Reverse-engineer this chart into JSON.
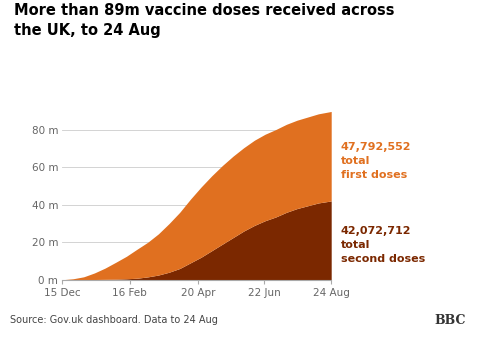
{
  "title": "More than 89m vaccine doses received across\nthe UK, to 24 Aug",
  "source_text": "Source: Gov.uk dashboard. Data to 24 Aug",
  "bbc_text": "BBC",
  "first_dose_label": "47,792,552\ntotal\nfirst doses",
  "second_dose_label": "42,072,712\ntotal\nsecond doses",
  "first_dose_color": "#E07020",
  "second_dose_color": "#7B2800",
  "title_color": "#000000",
  "label_first_color": "#E07020",
  "label_second_color": "#7B2800",
  "background_color": "#FFFFFF",
  "ytick_labels": [
    "0 m",
    "20 m",
    "40 m",
    "60 m",
    "80 m"
  ],
  "ytick_values": [
    0,
    20000000,
    40000000,
    60000000,
    80000000
  ],
  "xtick_labels": [
    "15 Dec",
    "16 Feb",
    "20 Apr",
    "22 Jun",
    "24 Aug"
  ],
  "dates_numeric": [
    0,
    63,
    127,
    189,
    252
  ],
  "first_doses_at_ticks": [
    0,
    15200000,
    38000000,
    47500000,
    47792552
  ],
  "second_doses_at_ticks": [
    0,
    400000,
    6000000,
    30000000,
    42072712
  ],
  "ylim": [
    0,
    90000000
  ],
  "xlim": [
    0,
    252
  ]
}
